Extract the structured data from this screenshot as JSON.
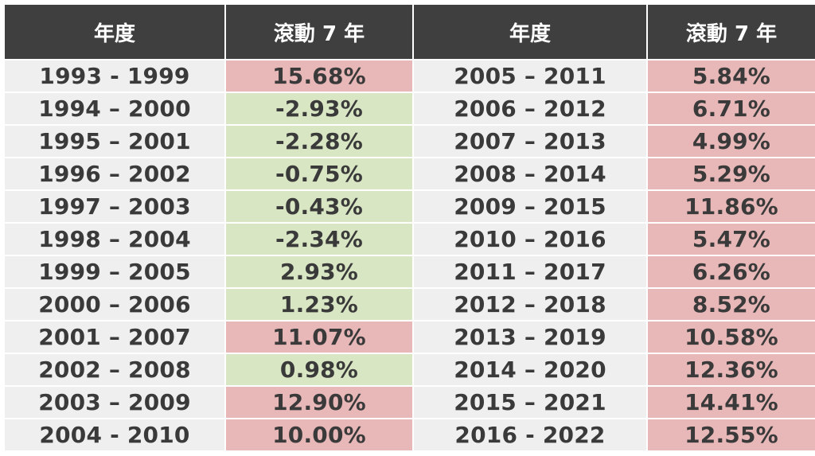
{
  "headers": {
    "period": "年度",
    "rolling": "滾動 7 年"
  },
  "colors": {
    "header_bg": "#3f3f3f",
    "positive_bg": "#e8b7b7",
    "negative_bg": "#d9e6c3",
    "period_bg": "#efefef"
  },
  "rows": [
    {
      "left_period": "1993 - 1999",
      "left_value": "15.68%",
      "left_tone": "pos",
      "right_period": "2005 – 2011",
      "right_value": "5.84%",
      "right_tone": "pos"
    },
    {
      "left_period": "1994 – 2000",
      "left_value": "-2.93%",
      "left_tone": "neg",
      "right_period": "2006 – 2012",
      "right_value": "6.71%",
      "right_tone": "pos"
    },
    {
      "left_period": "1995 – 2001",
      "left_value": "-2.28%",
      "left_tone": "neg",
      "right_period": "2007 – 2013",
      "right_value": "4.99%",
      "right_tone": "pos"
    },
    {
      "left_period": "1996 – 2002",
      "left_value": "-0.75%",
      "left_tone": "neg",
      "right_period": "2008 – 2014",
      "right_value": "5.29%",
      "right_tone": "pos"
    },
    {
      "left_period": "1997 – 2003",
      "left_value": "-0.43%",
      "left_tone": "neg",
      "right_period": "2009 – 2015",
      "right_value": "11.86%",
      "right_tone": "pos"
    },
    {
      "left_period": "1998 – 2004",
      "left_value": "-2.34%",
      "left_tone": "neg",
      "right_period": "2010 – 2016",
      "right_value": "5.47%",
      "right_tone": "pos"
    },
    {
      "left_period": "1999 – 2005",
      "left_value": "2.93%",
      "left_tone": "neg",
      "right_period": "2011 – 2017",
      "right_value": "6.26%",
      "right_tone": "pos"
    },
    {
      "left_period": "2000 – 2006",
      "left_value": "1.23%",
      "left_tone": "neg",
      "right_period": "2012 – 2018",
      "right_value": "8.52%",
      "right_tone": "pos"
    },
    {
      "left_period": "2001 – 2007",
      "left_value": "11.07%",
      "left_tone": "pos",
      "right_period": "2013 – 2019",
      "right_value": "10.58%",
      "right_tone": "pos"
    },
    {
      "left_period": "2002 – 2008",
      "left_value": "0.98%",
      "left_tone": "neg",
      "right_period": "2014 – 2020",
      "right_value": "12.36%",
      "right_tone": "pos"
    },
    {
      "left_period": "2003 – 2009",
      "left_value": "12.90%",
      "left_tone": "pos",
      "right_period": "2015 – 2021",
      "right_value": "14.41%",
      "right_tone": "pos"
    },
    {
      "left_period": "2004 - 2010",
      "left_value": "10.00%",
      "left_tone": "pos",
      "right_period": "2016 - 2022",
      "right_value": "12.55%",
      "right_tone": "pos"
    }
  ]
}
